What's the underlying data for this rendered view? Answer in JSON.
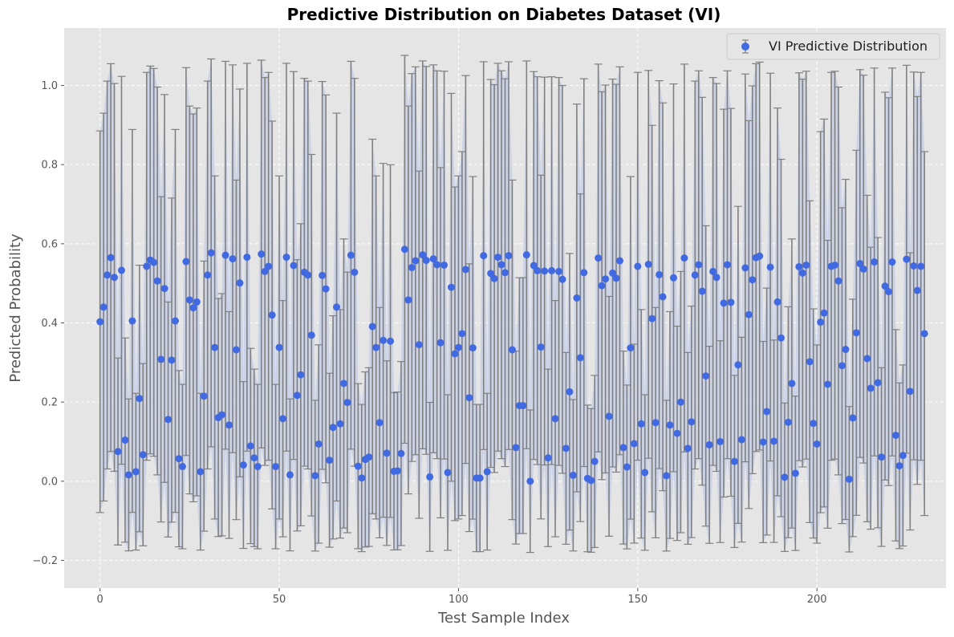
{
  "chart_data": {
    "type": "scatter",
    "title": "Predictive Distribution on Diabetes Dataset (VI)",
    "xlabel": "Test Sample Index",
    "ylabel": "Predicted Probability",
    "xlim": [
      -10,
      236
    ],
    "ylim": [
      -0.27,
      1.145
    ],
    "xticks": [
      0,
      50,
      100,
      150,
      200
    ],
    "xtick_labels": [
      "0",
      "50",
      "100",
      "150",
      "200"
    ],
    "yticks": [
      -0.2,
      0.0,
      0.2,
      0.4,
      0.6,
      0.8,
      1.0
    ],
    "ytick_labels": [
      "−0.2",
      "0.0",
      "0.2",
      "0.4",
      "0.6",
      "0.8",
      "1.0"
    ],
    "grid": true,
    "legend_position": "top-right",
    "series": [
      {
        "name": "VI Predictive Distribution",
        "marker_color": "#4169e1",
        "errorbar_color": "#808080",
        "band_color": "#c8d0e6",
        "x": [
          0,
          1,
          2,
          3,
          4,
          5,
          6,
          7,
          8,
          9,
          10,
          11,
          12,
          13,
          14,
          15,
          16,
          17,
          18,
          19,
          20,
          21,
          22,
          23,
          24,
          25,
          26,
          27,
          28,
          29,
          30,
          31,
          32,
          33,
          34,
          35,
          36,
          37,
          38,
          39,
          40,
          41,
          42,
          43,
          44,
          45,
          46,
          47,
          48,
          49,
          50,
          51,
          52,
          53,
          54,
          55,
          56,
          57,
          58,
          59,
          60,
          61,
          62,
          63,
          64,
          65,
          66,
          67,
          68,
          69,
          70,
          71,
          72,
          73,
          74,
          75,
          76,
          77,
          78,
          79,
          80,
          81,
          82,
          83,
          84,
          85,
          86,
          87,
          88,
          89,
          90,
          91,
          92,
          93,
          94,
          95,
          96,
          97,
          98,
          99,
          100,
          101,
          102,
          103,
          104,
          105,
          106,
          107,
          108,
          109,
          110,
          111,
          112,
          113,
          114,
          115,
          116,
          117,
          118,
          119,
          120,
          121,
          122,
          123,
          124,
          125,
          126,
          127,
          128,
          129,
          130,
          131,
          132,
          133,
          134,
          135,
          136,
          137,
          138,
          139,
          140,
          141,
          142,
          143,
          144,
          145,
          146,
          147,
          148,
          149,
          150,
          151,
          152,
          153,
          154,
          155,
          156,
          157,
          158,
          159,
          160,
          161,
          162,
          163,
          164,
          165,
          166,
          167,
          168,
          169,
          170,
          171,
          172,
          173,
          174,
          175,
          176,
          177,
          178,
          179,
          180,
          181,
          182,
          183,
          184,
          185,
          186,
          187,
          188,
          189,
          190,
          191,
          192,
          193,
          194,
          195,
          196,
          197,
          198,
          199,
          200,
          201,
          202,
          203,
          204,
          205,
          206,
          207,
          208,
          209,
          210,
          211,
          212,
          213,
          214,
          215,
          216,
          217,
          218,
          219,
          220,
          221,
          222,
          223,
          224,
          225,
          226,
          227,
          228,
          229,
          230
        ],
        "y": [
          0.403,
          0.44,
          0.521,
          0.565,
          0.515,
          0.075,
          0.533,
          0.104,
          0.016,
          0.405,
          0.024,
          0.209,
          0.067,
          0.543,
          0.559,
          0.553,
          0.506,
          0.308,
          0.487,
          0.156,
          0.306,
          0.405,
          0.057,
          0.037,
          0.555,
          0.458,
          0.438,
          0.453,
          0.024,
          0.215,
          0.521,
          0.577,
          0.338,
          0.161,
          0.168,
          0.571,
          0.142,
          0.562,
          0.332,
          0.501,
          0.041,
          0.566,
          0.089,
          0.059,
          0.037,
          0.574,
          0.53,
          0.543,
          0.42,
          0.037,
          0.338,
          0.158,
          0.566,
          0.016,
          0.545,
          0.217,
          0.269,
          0.528,
          0.521,
          0.369,
          0.014,
          0.094,
          0.52,
          0.486,
          0.053,
          0.136,
          0.44,
          0.145,
          0.247,
          0.199,
          0.571,
          0.528,
          0.038,
          0.008,
          0.055,
          0.061,
          0.391,
          0.338,
          0.148,
          0.356,
          0.071,
          0.354,
          0.025,
          0.026,
          0.07,
          0.586,
          0.458,
          0.54,
          0.557,
          0.345,
          0.572,
          0.558,
          0.011,
          0.562,
          0.547,
          0.35,
          0.546,
          0.022,
          0.49,
          0.322,
          0.338,
          0.373,
          0.535,
          0.211,
          0.337,
          0.008,
          0.008,
          0.57,
          0.024,
          0.525,
          0.512,
          0.566,
          0.547,
          0.527,
          0.57,
          0.332,
          0.085,
          0.191,
          0.191,
          0.572,
          0.0,
          0.545,
          0.532,
          0.339,
          0.531,
          0.059,
          0.532,
          0.158,
          0.53,
          0.51,
          0.083,
          0.226,
          0.015,
          0.463,
          0.312,
          0.527,
          0.007,
          0.002,
          0.05,
          0.564,
          0.494,
          0.511,
          0.164,
          0.526,
          0.513,
          0.557,
          0.085,
          0.036,
          0.337,
          0.095,
          0.543,
          0.145,
          0.022,
          0.548,
          0.411,
          0.148,
          0.522,
          0.466,
          0.014,
          0.142,
          0.514,
          0.121,
          0.2,
          0.564,
          0.083,
          0.15,
          0.521,
          0.547,
          0.48,
          0.266,
          0.092,
          0.53,
          0.515,
          0.1,
          0.45,
          0.547,
          0.452,
          0.05,
          0.294,
          0.105,
          0.539,
          0.421,
          0.509,
          0.565,
          0.569,
          0.099,
          0.176,
          0.541,
          0.101,
          0.453,
          0.362,
          0.01,
          0.149,
          0.247,
          0.02,
          0.542,
          0.526,
          0.546,
          0.302,
          0.146,
          0.094,
          0.402,
          0.425,
          0.245,
          0.543,
          0.546,
          0.506,
          0.292,
          0.333,
          0.005,
          0.16,
          0.375,
          0.55,
          0.536,
          0.31,
          0.235,
          0.554,
          0.249,
          0.061,
          0.493,
          0.479,
          0.554,
          0.116,
          0.039,
          0.065,
          0.561,
          0.227,
          0.544,
          0.482,
          0.543,
          0.373
        ]
      }
    ]
  }
}
